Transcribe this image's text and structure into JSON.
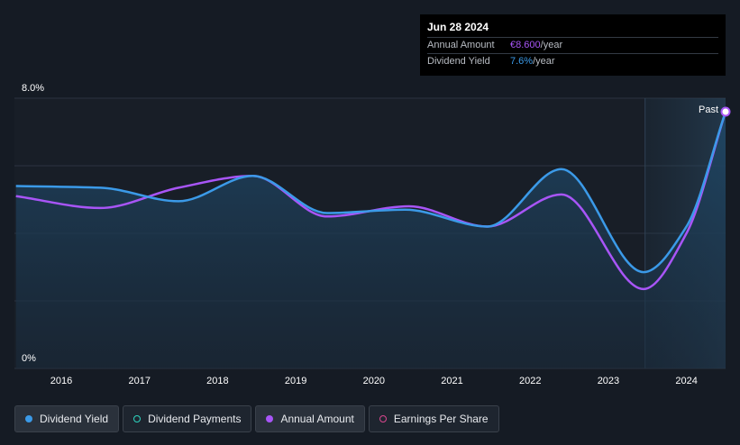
{
  "tooltip": {
    "date": "Jun 28 2024",
    "annual_amount_label": "Annual Amount",
    "annual_amount_value": "€8.600",
    "annual_amount_unit": "/year",
    "dividend_yield_label": "Dividend Yield",
    "dividend_yield_value": "7.6%",
    "dividend_yield_unit": "/year"
  },
  "past_label": "Past",
  "legend": [
    {
      "label": "Dividend Yield",
      "color": "#3b9ae8",
      "style": "filled",
      "active": true
    },
    {
      "label": "Dividend Payments",
      "color": "#2dd4bf",
      "style": "hollow",
      "active": false
    },
    {
      "label": "Annual Amount",
      "color": "#a855f7",
      "style": "filled",
      "active": true
    },
    {
      "label": "Earnings Per Share",
      "color": "#d9478f",
      "style": "hollow",
      "active": false
    }
  ],
  "colors": {
    "yield_line": "#3b9ae8",
    "amount_line": "#a855f7",
    "grid": "#2b3340",
    "axis_text": "#ffffff"
  },
  "chart_data": {
    "type": "line",
    "y_tick_labels": [
      "8.0%",
      "0%"
    ],
    "ylim": [
      0,
      8.0
    ],
    "xlim": [
      2015.4,
      2024.5
    ],
    "x_ticks": [
      2016,
      2017,
      2018,
      2019,
      2020,
      2021,
      2022,
      2023,
      2024
    ],
    "forecast_start": 2023.47,
    "grid": true,
    "series": [
      {
        "name": "Dividend Yield",
        "x": [
          2015.42,
          2016.5,
          2017.5,
          2018.45,
          2019.4,
          2020.4,
          2021.45,
          2022.4,
          2023.45,
          2024.0,
          2024.5
        ],
        "y": [
          5.4,
          5.35,
          4.95,
          5.7,
          4.6,
          4.7,
          4.2,
          5.9,
          2.85,
          4.2,
          7.6
        ]
      },
      {
        "name": "Annual Amount",
        "x": [
          2015.42,
          2016.5,
          2017.5,
          2018.45,
          2019.4,
          2020.45,
          2021.45,
          2022.4,
          2023.45,
          2024.0,
          2024.5
        ],
        "y": [
          5.1,
          4.75,
          5.35,
          5.7,
          4.5,
          4.8,
          4.2,
          5.15,
          2.35,
          4.0,
          7.6
        ]
      }
    ]
  }
}
